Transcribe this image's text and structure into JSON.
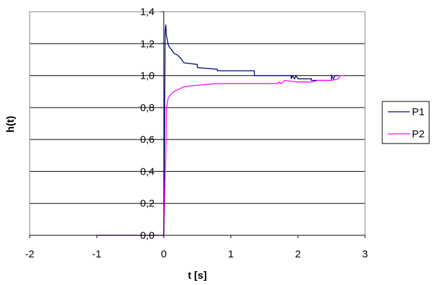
{
  "chart_data": {
    "type": "line",
    "title": "",
    "xlabel": "t [s]",
    "ylabel": "h(t)",
    "xlim": [
      -2,
      3
    ],
    "ylim": [
      0,
      1.4
    ],
    "x_ticks": [
      "-2",
      "-1",
      "0",
      "1",
      "2",
      "3"
    ],
    "y_ticks": [
      "0,0",
      "0,2",
      "0,4",
      "0,6",
      "0,8",
      "1,0",
      "1,2",
      "1,4"
    ],
    "grid": "horizontal",
    "legend_position": "right",
    "series": [
      {
        "name": "P1",
        "color": "#000080",
        "x": [
          -1,
          -0.01,
          0.0,
          0.01,
          0.02,
          0.03,
          0.04,
          0.05,
          0.06,
          0.08,
          0.1,
          0.12,
          0.15,
          0.2,
          0.25,
          0.3,
          0.5,
          0.5,
          0.8,
          0.8,
          1.35,
          1.35,
          1.9,
          1.9,
          1.92,
          1.95,
          1.97,
          2.0,
          2.05,
          2.1,
          2.2,
          2.2,
          2.5,
          2.5,
          2.53,
          2.55,
          2.6
        ],
        "y": [
          0.0,
          0.0,
          0.0,
          0.6,
          1.28,
          1.32,
          1.25,
          1.23,
          1.2,
          1.18,
          1.17,
          1.16,
          1.14,
          1.13,
          1.11,
          1.08,
          1.07,
          1.05,
          1.04,
          1.03,
          1.03,
          1.0,
          1.0,
          0.98,
          1.0,
          0.98,
          1.0,
          0.98,
          0.98,
          0.98,
          0.98,
          0.97,
          0.97,
          1.0,
          0.98,
          1.0,
          1.0
        ]
      },
      {
        "name": "P2",
        "color": "#FF00FF",
        "x": [
          -1,
          -0.01,
          0.0,
          0.02,
          0.03,
          0.04,
          0.05,
          0.06,
          0.08,
          0.1,
          0.15,
          0.2,
          0.25,
          0.3,
          0.5,
          0.8,
          1.7,
          1.72,
          1.75,
          1.78,
          1.8,
          2.0,
          2.2,
          2.3,
          2.5,
          2.6,
          2.63,
          2.7
        ],
        "y": [
          0.0,
          0.0,
          0.0,
          0.4,
          0.5,
          0.8,
          0.82,
          0.85,
          0.87,
          0.88,
          0.9,
          0.91,
          0.92,
          0.93,
          0.94,
          0.95,
          0.95,
          0.96,
          0.95,
          0.96,
          0.97,
          0.96,
          0.96,
          0.97,
          0.97,
          0.98,
          1.0,
          1.0
        ]
      }
    ]
  }
}
